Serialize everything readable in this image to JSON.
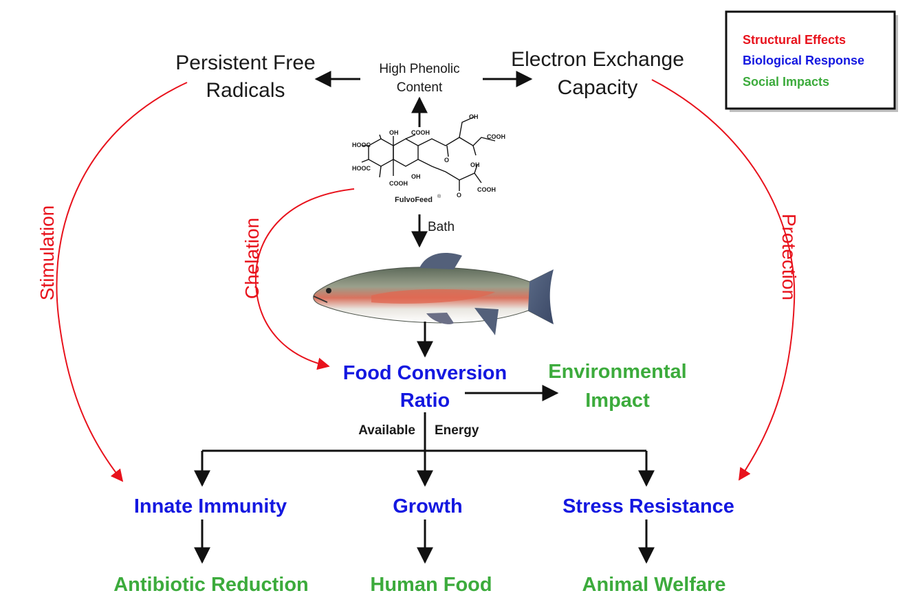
{
  "legend": {
    "items": [
      {
        "label": "Structural Effects",
        "color": "#e8121c"
      },
      {
        "label": "Biological Response",
        "color": "#1418e0"
      },
      {
        "label": "Social Impacts",
        "color": "#3cab3c"
      }
    ]
  },
  "nodes": {
    "persistent_free_radicals": {
      "line1": "Persistent Free",
      "line2": "Radicals"
    },
    "high_phenolic_content": {
      "line1": "High Phenolic",
      "line2": "Content"
    },
    "electron_exchange_capacity": {
      "line1": "Electron Exchange",
      "line2": "Capacity"
    },
    "compound": {
      "name": "FulvoFeed",
      "groups": [
        "OH",
        "COOH",
        "OH",
        "COOH",
        "HOOC",
        "HOOC",
        "COOH",
        "OH",
        "OH",
        "O",
        "O",
        "COOH"
      ]
    },
    "bath": "Bath",
    "food_conversion_ratio": {
      "line1": "Food Conversion",
      "line2": "Ratio"
    },
    "environmental_impact": {
      "line1": "Environmental",
      "line2": "Impact"
    },
    "available": "Available",
    "energy": "Energy",
    "innate_immunity": "Innate Immunity",
    "growth": "Growth",
    "stress_resistance": "Stress Resistance",
    "antibiotic_reduction": "Antibiotic Reduction",
    "human_food": "Human Food",
    "animal_welfare": "Animal Welfare"
  },
  "arc_labels": {
    "stimulation": "Stimulation",
    "chelation": "Chelation",
    "protection": "Protection"
  },
  "colors": {
    "structural": "#e8121c",
    "biological": "#1418e0",
    "social": "#3cab3c",
    "connector": "#111111"
  },
  "icons": {
    "fish": "rainbow-trout-illustration",
    "molecule": "fulvic-acid-structure"
  }
}
